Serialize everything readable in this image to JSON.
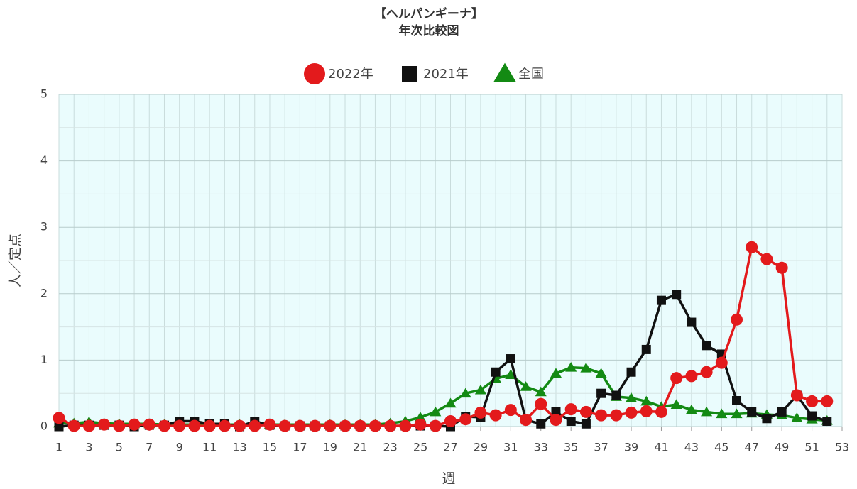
{
  "chart_data": {
    "type": "line",
    "title": "【ヘルパンギーナ】",
    "subtitle": "年次比較図",
    "xlabel": "週",
    "ylabel": "人／定点",
    "x": [
      1,
      2,
      3,
      4,
      5,
      6,
      7,
      8,
      9,
      10,
      11,
      12,
      13,
      14,
      15,
      16,
      17,
      18,
      19,
      20,
      21,
      22,
      23,
      24,
      25,
      26,
      27,
      28,
      29,
      30,
      31,
      32,
      33,
      34,
      35,
      36,
      37,
      38,
      39,
      40,
      41,
      42,
      43,
      44,
      45,
      46,
      47,
      48,
      49,
      50,
      51,
      52
    ],
    "xlim": [
      1,
      53
    ],
    "xticks": [
      1,
      3,
      5,
      7,
      9,
      11,
      13,
      15,
      17,
      19,
      21,
      23,
      25,
      27,
      29,
      31,
      33,
      35,
      37,
      39,
      41,
      43,
      45,
      47,
      49,
      51,
      53
    ],
    "ylim": [
      0,
      5
    ],
    "yticks": [
      0,
      1,
      2,
      3,
      4,
      5
    ],
    "grid": true,
    "legend": "top",
    "series": [
      {
        "name": "2022年",
        "color": "#e31a1c",
        "marker": "circle",
        "values": [
          0.13,
          0.01,
          0.01,
          0.03,
          0.01,
          0.03,
          0.03,
          0.01,
          0.01,
          0.01,
          0.01,
          0.01,
          0.01,
          0.01,
          0.03,
          0.01,
          0.01,
          0.01,
          0.01,
          0.01,
          0.01,
          0.01,
          0.01,
          0.01,
          0.03,
          0.01,
          0.08,
          0.11,
          0.21,
          0.17,
          0.25,
          0.1,
          0.34,
          0.1,
          0.26,
          0.22,
          0.17,
          0.17,
          0.21,
          0.23,
          0.22,
          0.73,
          0.76,
          0.82,
          0.96,
          1.61,
          2.7,
          2.52,
          2.39,
          0.47,
          0.38,
          0.38
        ]
      },
      {
        "name": "2021年",
        "color": "#111111",
        "marker": "square",
        "values": [
          0.0,
          0.02,
          0.02,
          0.02,
          0.02,
          0.0,
          0.02,
          0.02,
          0.08,
          0.08,
          0.04,
          0.04,
          0.0,
          0.08,
          0.02,
          0.01,
          0.01,
          0.01,
          0.01,
          0.01,
          0.01,
          0.01,
          0.01,
          0.01,
          0.01,
          0.01,
          0.0,
          0.15,
          0.14,
          0.82,
          1.02,
          0.1,
          0.04,
          0.22,
          0.08,
          0.04,
          0.5,
          0.47,
          0.82,
          1.16,
          1.9,
          1.99,
          1.57,
          1.22,
          1.09,
          0.39,
          0.22,
          0.12,
          0.22,
          0.47,
          0.16,
          0.08
        ]
      },
      {
        "name": "全国",
        "color": "#138a13",
        "marker": "triangle",
        "values": [
          0.05,
          0.05,
          0.07,
          0.05,
          0.04,
          0.04,
          0.04,
          0.03,
          0.03,
          0.03,
          0.03,
          0.03,
          0.03,
          0.03,
          0.03,
          0.03,
          0.03,
          0.03,
          0.03,
          0.03,
          0.03,
          0.03,
          0.05,
          0.08,
          0.14,
          0.22,
          0.35,
          0.5,
          0.55,
          0.72,
          0.78,
          0.6,
          0.52,
          0.8,
          0.89,
          0.88,
          0.8,
          0.45,
          0.43,
          0.38,
          0.3,
          0.33,
          0.25,
          0.22,
          0.19,
          0.19,
          0.2,
          0.18,
          0.17,
          0.13,
          0.11,
          0.09
        ]
      }
    ]
  }
}
